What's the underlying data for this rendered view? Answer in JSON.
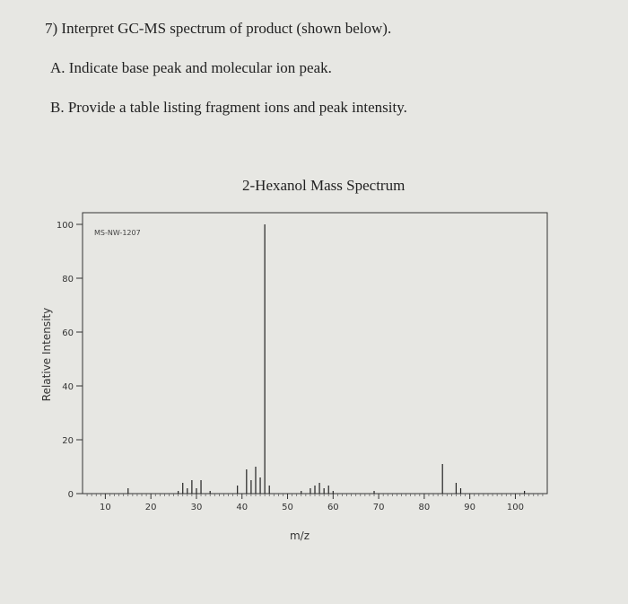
{
  "question": {
    "main": "7) Interpret GC-MS spectrum of product (shown below).",
    "a": "A. Indicate base peak and molecular ion peak.",
    "b": "B. Provide a table listing fragment ions and peak intensity."
  },
  "chart_data": {
    "type": "bar",
    "title": "2-Hexanol Mass Spectrum",
    "code": "MS-NW-1207",
    "xlabel": "m/z",
    "ylabel": "Relative Intensity",
    "xlim": [
      5,
      107
    ],
    "ylim": [
      0,
      100
    ],
    "xticks": [
      "10",
      "20",
      "30",
      "40",
      "50",
      "60",
      "70",
      "80",
      "90",
      "100"
    ],
    "yticks": [
      "0",
      "20",
      "40",
      "60",
      "80",
      "100"
    ],
    "x": [
      15,
      26,
      27,
      28,
      29,
      30,
      31,
      33,
      39,
      41,
      42,
      43,
      44,
      45,
      46,
      53,
      55,
      56,
      57,
      58,
      59,
      60,
      69,
      84,
      87,
      88,
      102
    ],
    "values": [
      2,
      1,
      4,
      2,
      5,
      2,
      5,
      1,
      3,
      9,
      5,
      10,
      6,
      100,
      3,
      1,
      2,
      3,
      4,
      2,
      3,
      1,
      1,
      11,
      4,
      2,
      1
    ]
  }
}
